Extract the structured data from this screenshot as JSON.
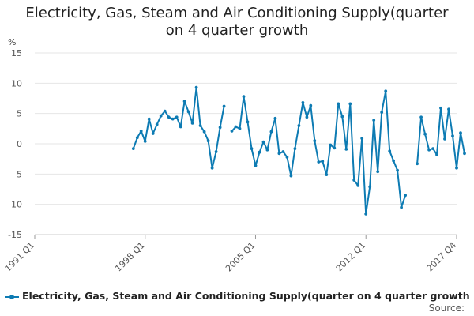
{
  "chart_data": {
    "type": "line",
    "title_lines": [
      "Electricity, Gas, Steam and Air Conditioning Supply(quarter",
      "on 4 quarter growth"
    ],
    "y_unit": "%",
    "ylim": [
      -15,
      15
    ],
    "y_ticks": [
      15,
      10,
      5,
      0,
      -5,
      -10,
      -15
    ],
    "x_tick_labels": [
      "1991 Q1",
      "1998 Q1",
      "2005 Q1",
      "2012 Q1",
      "2017 Q4"
    ],
    "grid": true,
    "legend_position": "bottom-left",
    "series": [
      {
        "name": "Electricity, Gas, Steam and Air Conditioning Supply(quarter on 4 quarter growth",
        "color": "#0d7bb3",
        "data": [
          {
            "x": "1997 Q2",
            "y": -0.8
          },
          {
            "x": "1997 Q3",
            "y": 1.0
          },
          {
            "x": "1997 Q4",
            "y": 2.1
          },
          {
            "x": "1998 Q1",
            "y": 0.4
          },
          {
            "x": "1998 Q2",
            "y": 4.1
          },
          {
            "x": "1998 Q3",
            "y": 1.7
          },
          {
            "x": "1998 Q4",
            "y": 3.2
          },
          {
            "x": "1999 Q1",
            "y": 4.6
          },
          {
            "x": "1999 Q2",
            "y": 5.4
          },
          {
            "x": "1999 Q3",
            "y": 4.4
          },
          {
            "x": "1999 Q4",
            "y": 4.1
          },
          {
            "x": "2000 Q1",
            "y": 4.4
          },
          {
            "x": "2000 Q2",
            "y": 2.8
          },
          {
            "x": "2000 Q3",
            "y": 7.0
          },
          {
            "x": "2000 Q4",
            "y": 5.3
          },
          {
            "x": "2001 Q1",
            "y": 3.4
          },
          {
            "x": "2001 Q2",
            "y": 9.3
          },
          {
            "x": "2001 Q3",
            "y": 3.0
          },
          {
            "x": "2001 Q4",
            "y": 2.0
          },
          {
            "x": "2002 Q1",
            "y": 0.5
          },
          {
            "x": "2002 Q2",
            "y": -4.0
          },
          {
            "x": "2002 Q3",
            "y": -1.3
          },
          {
            "x": "2002 Q4",
            "y": 2.7
          },
          {
            "x": "2003 Q1",
            "y": 6.2
          },
          {
            "x": "2003 Q2",
            "y": null
          },
          {
            "x": "2003 Q3",
            "y": 2.1
          },
          {
            "x": "2003 Q4",
            "y": 2.8
          },
          {
            "x": "2004 Q1",
            "y": 2.5
          },
          {
            "x": "2004 Q2",
            "y": 7.8
          },
          {
            "x": "2004 Q3",
            "y": 3.6
          },
          {
            "x": "2004 Q4",
            "y": -0.8
          },
          {
            "x": "2005 Q1",
            "y": -3.6
          },
          {
            "x": "2005 Q2",
            "y": -1.4
          },
          {
            "x": "2005 Q3",
            "y": 0.3
          },
          {
            "x": "2005 Q4",
            "y": -1.0
          },
          {
            "x": "2006 Q1",
            "y": 2.0
          },
          {
            "x": "2006 Q2",
            "y": 4.2
          },
          {
            "x": "2006 Q3",
            "y": -1.6
          },
          {
            "x": "2006 Q4",
            "y": -1.3
          },
          {
            "x": "2007 Q1",
            "y": -2.2
          },
          {
            "x": "2007 Q2",
            "y": -5.3
          },
          {
            "x": "2007 Q3",
            "y": -0.8
          },
          {
            "x": "2007 Q4",
            "y": 3.0
          },
          {
            "x": "2008 Q1",
            "y": 6.8
          },
          {
            "x": "2008 Q2",
            "y": 4.4
          },
          {
            "x": "2008 Q3",
            "y": 6.3
          },
          {
            "x": "2008 Q4",
            "y": 0.5
          },
          {
            "x": "2009 Q1",
            "y": -3.0
          },
          {
            "x": "2009 Q2",
            "y": -2.9
          },
          {
            "x": "2009 Q3",
            "y": -5.1
          },
          {
            "x": "2009 Q4",
            "y": -0.2
          },
          {
            "x": "2010 Q1",
            "y": -0.7
          },
          {
            "x": "2010 Q2",
            "y": 6.6
          },
          {
            "x": "2010 Q3",
            "y": 4.5
          },
          {
            "x": "2010 Q4",
            "y": -0.9
          },
          {
            "x": "2011 Q1",
            "y": 6.6
          },
          {
            "x": "2011 Q2",
            "y": -6.0
          },
          {
            "x": "2011 Q3",
            "y": -6.9
          },
          {
            "x": "2011 Q4",
            "y": 0.9
          },
          {
            "x": "2012 Q1",
            "y": -11.6
          },
          {
            "x": "2012 Q2",
            "y": -7.1
          },
          {
            "x": "2012 Q3",
            "y": 3.9
          },
          {
            "x": "2012 Q4",
            "y": -4.6
          },
          {
            "x": "2013 Q1",
            "y": 5.2
          },
          {
            "x": "2013 Q2",
            "y": 8.7
          },
          {
            "x": "2013 Q3",
            "y": -1.2
          },
          {
            "x": "2013 Q4",
            "y": -2.8
          },
          {
            "x": "2014 Q1",
            "y": -4.4
          },
          {
            "x": "2014 Q2",
            "y": -10.5
          },
          {
            "x": "2014 Q3",
            "y": -8.5
          },
          {
            "x": "2014 Q4",
            "y": null
          },
          {
            "x": "2015 Q1",
            "y": null
          },
          {
            "x": "2015 Q2",
            "y": -3.3
          },
          {
            "x": "2015 Q3",
            "y": 4.4
          },
          {
            "x": "2015 Q4",
            "y": 1.6
          },
          {
            "x": "2016 Q1",
            "y": -1.0
          },
          {
            "x": "2016 Q2",
            "y": -0.8
          },
          {
            "x": "2016 Q3",
            "y": -1.8
          },
          {
            "x": "2016 Q4",
            "y": 5.9
          },
          {
            "x": "2017 Q1",
            "y": 0.8
          },
          {
            "x": "2017 Q2",
            "y": 5.7
          },
          {
            "x": "2017 Q3",
            "y": 1.3
          },
          {
            "x": "2017 Q4",
            "y": -4.0
          },
          {
            "x": "2018 Q1",
            "y": 1.8
          },
          {
            "x": "2018 Q2",
            "y": -1.6
          }
        ]
      }
    ]
  },
  "legend": {
    "label": "Electricity, Gas, Steam and Air Conditioning Supply(quarter on 4 quarter growth"
  },
  "source": {
    "label": "Source:"
  }
}
